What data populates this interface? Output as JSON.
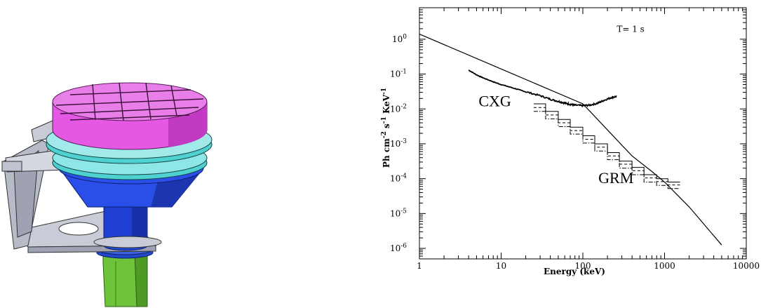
{
  "figure": {
    "left_panel": {
      "illustration": "cad-detector-assembly"
    }
  },
  "chart_data": {
    "type": "line",
    "xscale": "log",
    "yscale": "log",
    "xlim": [
      1,
      10000
    ],
    "ylim": [
      5e-07,
      8
    ],
    "xlabel": "Energy (keV)",
    "ylabel_parts": {
      "ph": "Ph cm",
      "e1": "-2",
      "s": " s",
      "e2": "-1",
      "kev": " KeV",
      "e3": "-1"
    },
    "x_ticks": [
      {
        "value": 1,
        "label": "1"
      },
      {
        "value": 10,
        "label": "10"
      },
      {
        "value": 100,
        "label": "100"
      },
      {
        "value": 1000,
        "label": "1000"
      },
      {
        "value": 10000,
        "label": "10000"
      }
    ],
    "y_ticks": [
      {
        "value": 1,
        "base": "10",
        "exp": "0"
      },
      {
        "value": 0.1,
        "base": "10",
        "exp": "-1"
      },
      {
        "value": 0.01,
        "base": "10",
        "exp": "-2"
      },
      {
        "value": 0.001,
        "base": "10",
        "exp": "-3"
      },
      {
        "value": 0.0001,
        "base": "10",
        "exp": "-4"
      },
      {
        "value": 1e-05,
        "base": "10",
        "exp": "-5"
      },
      {
        "value": 1e-06,
        "base": "10",
        "exp": "-6"
      }
    ],
    "grid": false,
    "annotations": [
      {
        "id": "time",
        "text": "T= 1 s",
        "x": 260,
        "y": 1.6,
        "size": "small"
      },
      {
        "id": "cxg",
        "text": "CXG",
        "x": 5.3,
        "y": 0.012,
        "size": "big"
      },
      {
        "id": "grm",
        "text": "GRM",
        "x": 155,
        "y": 7.5e-05,
        "size": "big"
      }
    ],
    "series": [
      {
        "id": "model",
        "style": "solid-thin",
        "points": [
          [
            1,
            1.4
          ],
          [
            10,
            0.14
          ],
          [
            100,
            0.014
          ],
          [
            200,
            0.0025
          ],
          [
            400,
            0.00045
          ],
          [
            700,
            0.00016
          ],
          [
            1000,
            8e-05
          ],
          [
            2000,
            1.55e-05
          ],
          [
            5000,
            1.25e-06
          ]
        ]
      },
      {
        "id": "cxg-sensitivity",
        "style": "noisy-thick",
        "points": [
          [
            4,
            0.13
          ],
          [
            5,
            0.095
          ],
          [
            6,
            0.078
          ],
          [
            8,
            0.06
          ],
          [
            10,
            0.05
          ],
          [
            15,
            0.038
          ],
          [
            20,
            0.031
          ],
          [
            30,
            0.024
          ],
          [
            40,
            0.019
          ],
          [
            50,
            0.0165
          ],
          [
            60,
            0.0148
          ],
          [
            70,
            0.0135
          ],
          [
            80,
            0.0128
          ],
          [
            100,
            0.0125
          ],
          [
            120,
            0.0128
          ],
          [
            150,
            0.0145
          ],
          [
            180,
            0.0175
          ],
          [
            220,
            0.021
          ],
          [
            260,
            0.023
          ]
        ]
      },
      {
        "id": "grm-solid",
        "style": "step-solid",
        "edges": [
          25,
          35,
          50,
          70,
          100,
          140,
          200,
          280,
          400,
          560,
          800,
          1100,
          1550
        ],
        "values": [
          0.014,
          0.0085,
          0.005,
          0.003,
          0.0017,
          0.001,
          0.00056,
          0.00032,
          0.00021,
          0.00013,
          0.0001,
          8e-05
        ]
      },
      {
        "id": "grm-dashed",
        "style": "step-dashed",
        "edges": [
          25,
          35,
          50,
          70,
          100,
          140,
          200,
          280,
          400,
          560,
          800,
          1100,
          1550
        ],
        "values": [
          0.011,
          0.0067,
          0.004,
          0.0024,
          0.00135,
          0.0008,
          0.00045,
          0.00026,
          0.00017,
          0.000105,
          8.2e-05,
          6.6e-05
        ]
      },
      {
        "id": "grm-dashdot",
        "style": "step-dashdot",
        "edges": [
          25,
          35,
          50,
          70,
          100,
          140,
          200,
          280,
          400,
          560,
          800,
          1100,
          1550
        ],
        "values": [
          0.0085,
          0.0052,
          0.0031,
          0.0019,
          0.00105,
          0.00062,
          0.00035,
          0.0002,
          0.00013,
          8e-05,
          6.4e-05,
          5.2e-05
        ]
      }
    ]
  }
}
